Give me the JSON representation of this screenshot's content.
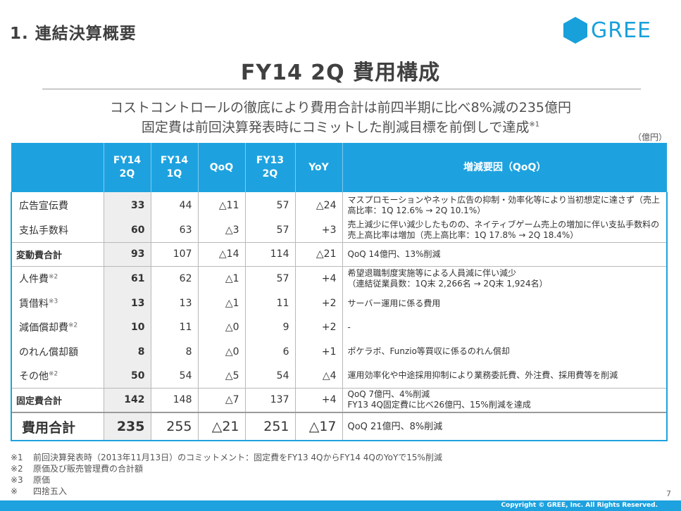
{
  "section_title": "1. 連結決算概要",
  "logo": {
    "text": "GREE",
    "icon": "hexagon-logo-icon",
    "color": "#18a0db"
  },
  "main_title": "FY14 2Q 費用構成",
  "summary": {
    "line1": "コストコントロールの徹底により費用合計は前四半期に比べ8%減の235億円",
    "line2": "固定費は前回決算発表時にコミットした削減目標を前倒しで達成",
    "line2_note": "※1"
  },
  "unit": "（億円）",
  "table": {
    "headers": {
      "col1": [
        "FY14",
        "2Q"
      ],
      "col2": [
        "FY14",
        "1Q"
      ],
      "col3": "QoQ",
      "col4": [
        "FY13",
        "2Q"
      ],
      "col5": "YoY",
      "col6": "増減要因（QoQ）"
    },
    "variable": [
      {
        "label": "広告宣伝費",
        "note": "",
        "fy14_2q": "33",
        "fy14_1q": "44",
        "qoq": "△11",
        "fy13_2q": "57",
        "yoy": "△24",
        "reason": "マスプロモーションやネット広告の抑制・効率化等により当初想定に達さず（売上高比率：1Q 12.6% → 2Q 10.1%）"
      },
      {
        "label": "支払手数料",
        "note": "",
        "fy14_2q": "60",
        "fy14_1q": "63",
        "qoq": "△3",
        "fy13_2q": "57",
        "yoy": "+3",
        "reason": "売上減少に伴い減少したものの、ネイティブゲーム売上の増加に伴い支払手数料の売上高比率は増加（売上高比率：1Q 17.8% → 2Q 18.4%）"
      }
    ],
    "variable_total": {
      "label": "変動費合計",
      "fy14_2q": "93",
      "fy14_1q": "107",
      "qoq": "△14",
      "fy13_2q": "114",
      "yoy": "△21",
      "reason": "QoQ 14億円、13%削減"
    },
    "fixed": [
      {
        "label": "人件費",
        "note": "※2",
        "fy14_2q": "61",
        "fy14_1q": "62",
        "qoq": "△1",
        "fy13_2q": "57",
        "yoy": "+4",
        "reason": "希望退職制度実施等による人員減に伴い減少",
        "reason2": "（連結従業員数：1Q末 2,266名 → 2Q末 1,924名）"
      },
      {
        "label": "賃借料",
        "note": "※3",
        "fy14_2q": "13",
        "fy14_1q": "13",
        "qoq": "△1",
        "fy13_2q": "11",
        "yoy": "+2",
        "reason": "サーバー運用に係る費用",
        "reason2": ""
      },
      {
        "label": "減価償却費",
        "note": "※2",
        "fy14_2q": "10",
        "fy14_1q": "11",
        "qoq": "△0",
        "fy13_2q": "9",
        "yoy": "+2",
        "reason": "-",
        "reason2": ""
      },
      {
        "label": "のれん償却額",
        "note": "",
        "fy14_2q": "8",
        "fy14_1q": "8",
        "qoq": "△0",
        "fy13_2q": "6",
        "yoy": "+1",
        "reason": "ポケラボ、Funzio等買収に係るのれん償却",
        "reason2": ""
      },
      {
        "label": "その他",
        "note": "※2",
        "fy14_2q": "50",
        "fy14_1q": "54",
        "qoq": "△5",
        "fy13_2q": "54",
        "yoy": "△4",
        "reason": "運用効率化や中途採用抑制により業務委託費、外注費、採用費等を削減",
        "reason2": ""
      }
    ],
    "fixed_total": {
      "label": "固定費合計",
      "fy14_2q": "142",
      "fy14_1q": "148",
      "qoq": "△7",
      "fy13_2q": "137",
      "yoy": "+4",
      "reason": "QoQ 7億円、4%削減",
      "reason2": "FY13 4Q固定費に比べ26億円、15%削減を達成"
    },
    "grand_total": {
      "label": "費用合計",
      "fy14_2q": "235",
      "fy14_1q": "255",
      "qoq": "△21",
      "fy13_2q": "251",
      "yoy": "△17",
      "reason": "QoQ 21億円、8%削減"
    }
  },
  "notes": [
    {
      "mark": "※1",
      "text": "前回決算発表時（2013年11月13日）のコミットメント：固定費をFY13 4QからFY14 4QのYoYで15%削減"
    },
    {
      "mark": "※2",
      "text": "原価及び販売管理費の合計額"
    },
    {
      "mark": "※3",
      "text": "原価"
    },
    {
      "mark": "※",
      "text": "四捨五入"
    }
  ],
  "page_number": "7",
  "copyright": "Copyright © GREE, Inc. All Rights Reserved.",
  "colors": {
    "accent": "#1ea2df",
    "highlight_column": "#eeeeee"
  }
}
